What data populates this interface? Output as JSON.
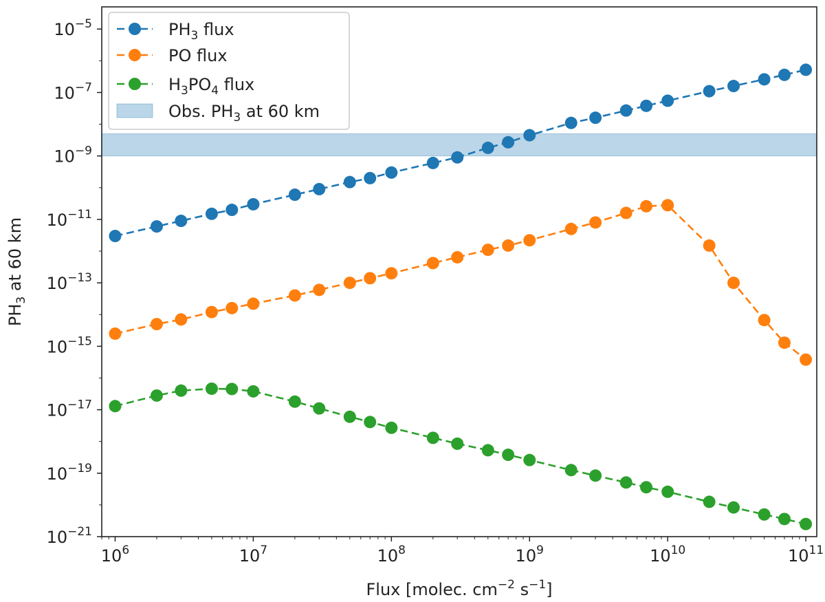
{
  "chart_data": {
    "type": "line",
    "xscale": "log",
    "yscale": "log",
    "xlim": [
      800000.0,
      120000000000.0
    ],
    "ylim": [
      1e-21,
      5e-05
    ],
    "xlabel": {
      "pre": "Flux [molec. cm",
      "sup1": "−2",
      "mid": " s",
      "sup2": "−1",
      "post": "]"
    },
    "ylabel": {
      "pre": "PH",
      "sub": "3",
      "post": " at 60 km"
    },
    "x_ticks": [
      {
        "value": 1000000.0,
        "base": "10",
        "exp": "6"
      },
      {
        "value": 10000000.0,
        "base": "10",
        "exp": "7"
      },
      {
        "value": 100000000.0,
        "base": "10",
        "exp": "8"
      },
      {
        "value": 1000000000.0,
        "base": "10",
        "exp": "9"
      },
      {
        "value": 10000000000.0,
        "base": "10",
        "exp": "10"
      },
      {
        "value": 100000000000.0,
        "base": "10",
        "exp": "11"
      }
    ],
    "y_ticks": [
      {
        "value": 1e-05,
        "base": "10",
        "exp": "−5"
      },
      {
        "value": 1e-07,
        "base": "10",
        "exp": "−7"
      },
      {
        "value": 1e-09,
        "base": "10",
        "exp": "−9"
      },
      {
        "value": 1e-11,
        "base": "10",
        "exp": "−11"
      },
      {
        "value": 1e-13,
        "base": "10",
        "exp": "−13"
      },
      {
        "value": 1e-15,
        "base": "10",
        "exp": "−15"
      },
      {
        "value": 1e-17,
        "base": "10",
        "exp": "−17"
      },
      {
        "value": 1e-19,
        "base": "10",
        "exp": "−19"
      },
      {
        "value": 1e-21,
        "base": "10",
        "exp": "−21"
      }
    ],
    "x": [
      1000000.0,
      2000000.0,
      3000000.0,
      5000000.0,
      7000000.0,
      10000000.0,
      20000000.0,
      30000000.0,
      50000000.0,
      70000000.0,
      100000000.0,
      200000000.0,
      300000000.0,
      500000000.0,
      700000000.0,
      1000000000.0,
      2000000000.0,
      3000000000.0,
      5000000000.0,
      7000000000.0,
      10000000000.0,
      20000000000.0,
      30000000000.0,
      50000000000.0,
      70000000000.0,
      100000000000.0
    ],
    "series": [
      {
        "legend": [
          {
            "t": "PH"
          },
          {
            "t": "3",
            "sub": true
          },
          {
            "t": " flux"
          }
        ],
        "color": "#1f77b4",
        "values": [
          3e-12,
          6e-12,
          9e-12,
          1.5e-11,
          2e-11,
          3e-11,
          6e-11,
          9e-11,
          1.5e-10,
          2e-10,
          3e-10,
          6e-10,
          9e-10,
          1.8e-09,
          2.7e-09,
          4.5e-09,
          1.1e-08,
          1.6e-08,
          2.7e-08,
          3.8e-08,
          5.5e-08,
          1.1e-07,
          1.6e-07,
          2.6e-07,
          3.6e-07,
          5.2e-07
        ]
      },
      {
        "legend": [
          {
            "t": "PO flux"
          }
        ],
        "color": "#ff7f0e",
        "values": [
          2.5e-15,
          5e-15,
          7e-15,
          1.2e-14,
          1.6e-14,
          2.2e-14,
          4e-14,
          6e-14,
          1e-13,
          1.4e-13,
          2e-13,
          4.2e-13,
          6.4e-13,
          1.1e-12,
          1.5e-12,
          2.2e-12,
          5e-12,
          8e-12,
          1.6e-11,
          2.6e-11,
          2.8e-11,
          1.5e-12,
          1e-13,
          6.7e-15,
          1.3e-15,
          3.8e-16
        ]
      },
      {
        "legend": [
          {
            "t": "H"
          },
          {
            "t": "3",
            "sub": true
          },
          {
            "t": "PO"
          },
          {
            "t": "4",
            "sub": true
          },
          {
            "t": " flux"
          }
        ],
        "color": "#2ca02c",
        "values": [
          1.3e-17,
          2.8e-17,
          4e-17,
          4.6e-17,
          4.5e-17,
          3.8e-17,
          1.8e-17,
          1.1e-17,
          6e-18,
          4.1e-18,
          2.7e-18,
          1.3e-18,
          8.5e-19,
          5.3e-19,
          3.8e-19,
          2.6e-19,
          1.25e-19,
          8.4e-20,
          5.1e-20,
          3.6e-20,
          2.6e-20,
          1.25e-20,
          8.3e-21,
          5e-21,
          3.6e-21,
          2.5e-21
        ]
      }
    ],
    "band": {
      "legend": [
        {
          "t": "Obs. PH"
        },
        {
          "t": "3",
          "sub": true
        },
        {
          "t": " at 60 km"
        }
      ],
      "color": "#1f77b4",
      "ymin": 1e-09,
      "ymax": 5e-09
    },
    "legend_position": "upper-left",
    "grid": false
  }
}
